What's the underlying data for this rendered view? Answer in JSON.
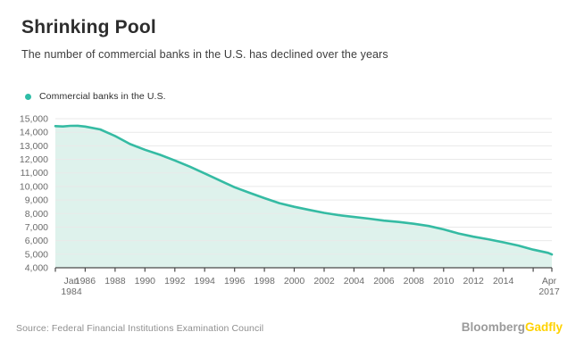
{
  "header": {
    "title": "Shrinking Pool",
    "subtitle": "The number of commercial banks in the U.S. has declined over the years"
  },
  "legend": {
    "label": "Commercial banks in the U.S.",
    "dot_color": "#2fbda7"
  },
  "chart_data": {
    "type": "area",
    "title": "Shrinking Pool",
    "xlabel": "",
    "ylabel": "",
    "xlim": [
      1984,
      2017.25
    ],
    "ylim": [
      4000,
      15000
    ],
    "grid": true,
    "legend_position": "top-left",
    "y_ticks": [
      4000,
      5000,
      6000,
      7000,
      8000,
      9000,
      10000,
      11000,
      12000,
      13000,
      14000,
      15000
    ],
    "x_ticks": [
      {
        "x": 1984,
        "label": "Jan 1984",
        "dx": 18
      },
      {
        "x": 1986,
        "label": "1986"
      },
      {
        "x": 1988,
        "label": "1988"
      },
      {
        "x": 1990,
        "label": "1990"
      },
      {
        "x": 1992,
        "label": "1992"
      },
      {
        "x": 1994,
        "label": "1994"
      },
      {
        "x": 1996,
        "label": "1996"
      },
      {
        "x": 1998,
        "label": "1998"
      },
      {
        "x": 2000,
        "label": "2000"
      },
      {
        "x": 2002,
        "label": "2002"
      },
      {
        "x": 2004,
        "label": "2004"
      },
      {
        "x": 2006,
        "label": "2006"
      },
      {
        "x": 2008,
        "label": "2008"
      },
      {
        "x": 2010,
        "label": "2010"
      },
      {
        "x": 2012,
        "label": "2012"
      },
      {
        "x": 2014,
        "label": "2014"
      },
      {
        "x": 2016,
        "label": ""
      },
      {
        "x": 2017.25,
        "label": "Apr 2017",
        "dx": -3
      }
    ],
    "series": [
      {
        "name": "Commercial banks in the U.S.",
        "x": [
          1984,
          1984.5,
          1985,
          1985.5,
          1986,
          1987,
          1988,
          1989,
          1990,
          1991,
          1992,
          1993,
          1994,
          1995,
          1996,
          1997,
          1998,
          1999,
          2000,
          2001,
          2002,
          2003,
          2004,
          2005,
          2006,
          2007,
          2008,
          2009,
          2010,
          2011,
          2012,
          2013,
          2014,
          2015,
          2016,
          2017,
          2017.25
        ],
        "values": [
          14450,
          14430,
          14470,
          14480,
          14420,
          14210,
          13720,
          13130,
          12710,
          12340,
          11920,
          11460,
          10960,
          10450,
          9940,
          9530,
          9140,
          8770,
          8500,
          8270,
          8050,
          7880,
          7750,
          7620,
          7480,
          7380,
          7250,
          7080,
          6830,
          6530,
          6290,
          6100,
          5880,
          5640,
          5340,
          5100,
          4980
        ]
      }
    ],
    "colors": {
      "line": "#35bba3",
      "fill": "#def2ec",
      "grid": "#e9e9e9",
      "axis": "#4a4a4a",
      "tick_label": "#6b6b6b"
    }
  },
  "footer": {
    "source": "Source: Federal Financial Institutions Examination Council",
    "brand_bloomberg": "Bloomberg",
    "brand_gadfly": "Gadfly",
    "brand_bloomberg_color": "#9b9b9b",
    "brand_gadfly_color": "#ffd200"
  }
}
